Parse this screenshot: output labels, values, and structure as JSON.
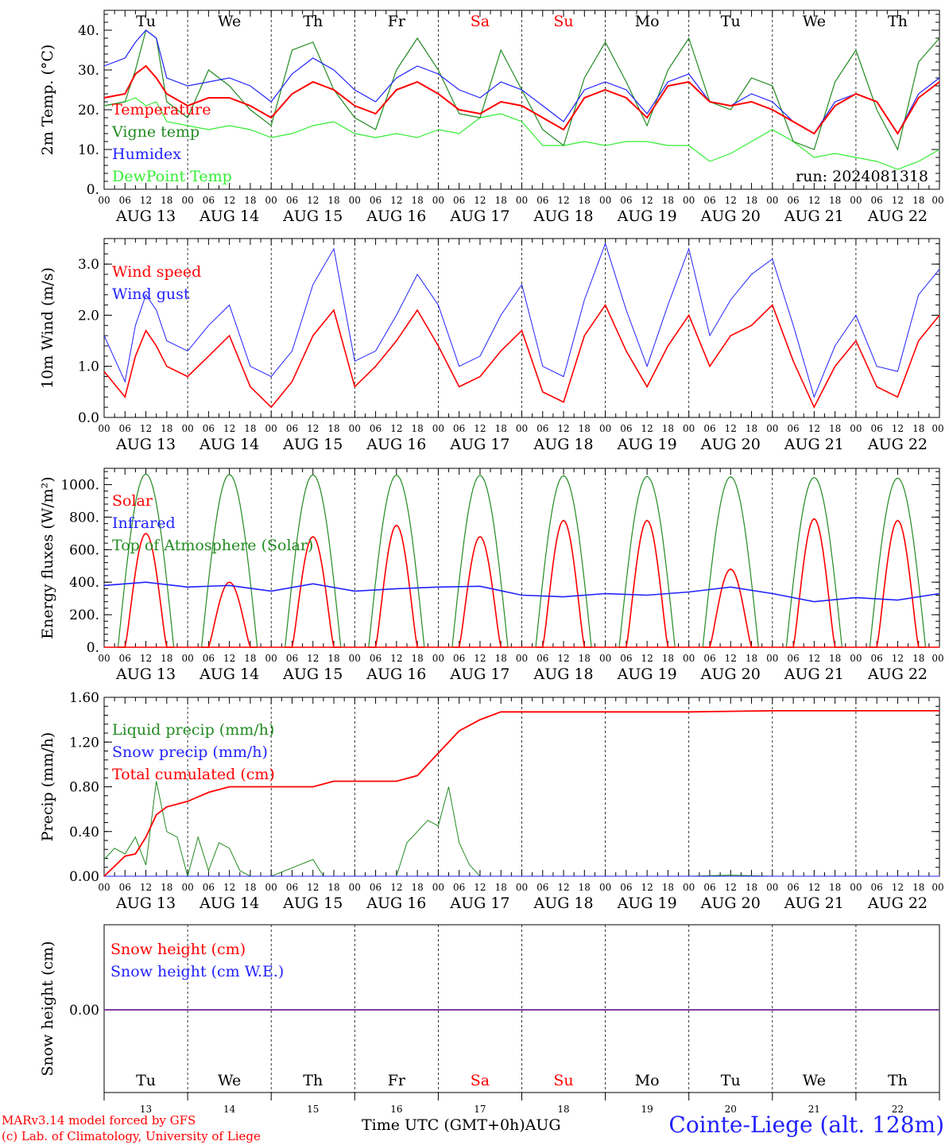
{
  "run_label": "run: 2024081318",
  "day_names": [
    "Tu",
    "We",
    "Th",
    "Fr",
    "Sa",
    "Su",
    "Mo",
    "Tu",
    "We",
    "Th"
  ],
  "weekend_indices": [
    4,
    5
  ],
  "date_labels": [
    "AUG 13",
    "AUG 14",
    "AUG 15",
    "AUG 16",
    "AUG 17",
    "AUG 18",
    "AUG 19",
    "AUG 20",
    "AUG 21",
    "AUG 22"
  ],
  "hour_labels": [
    "00",
    "06",
    "12",
    "18"
  ],
  "last_hour_label": "00",
  "bottom_day_numbers": [
    "13",
    "14",
    "15",
    "16",
    "17",
    "18",
    "19",
    "20",
    "21",
    "22"
  ],
  "colors": {
    "red": "#ff0000",
    "green": "#228b22",
    "blue": "#2222ff",
    "lightgreen": "#33ee33",
    "purple": "#7f3f9f"
  },
  "chart_data": [
    {
      "type": "line",
      "ylabel": "2m Temp. (°C)",
      "ylim": [
        0,
        45
      ],
      "yticks": [
        0,
        10,
        20,
        30,
        40
      ],
      "ytick_labels": [
        "0.",
        "10.",
        "20.",
        "30.",
        "40."
      ],
      "x_unit": "hours since AUG 13 00 UTC",
      "series": [
        {
          "name": "Temperature",
          "color": "red",
          "x": [
            0,
            6,
            9,
            12,
            15,
            18,
            24,
            30,
            36,
            42,
            48,
            54,
            60,
            66,
            72,
            78,
            84,
            90,
            96,
            102,
            108,
            114,
            120,
            126,
            132,
            138,
            144,
            150,
            156,
            162,
            168,
            174,
            180,
            186,
            192,
            198,
            204,
            210,
            216,
            222,
            228,
            234,
            240
          ],
          "y": [
            23,
            24,
            29,
            31,
            28,
            24,
            21,
            23,
            23,
            21,
            18,
            24,
            27,
            25,
            21,
            19,
            25,
            27,
            24,
            20,
            19,
            22,
            21,
            18,
            15,
            23,
            25,
            23,
            18,
            26,
            27,
            22,
            21,
            22,
            20,
            17,
            14,
            21,
            24,
            22,
            14,
            23,
            27
          ]
        },
        {
          "name": "Vigne temp",
          "color": "green",
          "x": [
            0,
            6,
            9,
            12,
            15,
            18,
            24,
            30,
            36,
            42,
            48,
            54,
            60,
            66,
            72,
            78,
            84,
            90,
            96,
            102,
            108,
            114,
            120,
            126,
            132,
            138,
            144,
            150,
            156,
            162,
            168,
            174,
            180,
            186,
            192,
            198,
            204,
            210,
            216,
            222,
            228,
            234,
            240
          ],
          "y": [
            21,
            22,
            30,
            40,
            38,
            22,
            18,
            30,
            26,
            20,
            16,
            35,
            37,
            25,
            18,
            15,
            30,
            38,
            30,
            19,
            18,
            35,
            25,
            15,
            11,
            28,
            37,
            27,
            16,
            30,
            38,
            22,
            20,
            28,
            26,
            12,
            10,
            27,
            35,
            20,
            10,
            32,
            38
          ]
        },
        {
          "name": "Humidex",
          "color": "blue",
          "x": [
            0,
            6,
            9,
            12,
            15,
            18,
            24,
            30,
            36,
            42,
            48,
            54,
            60,
            66,
            72,
            78,
            84,
            90,
            96,
            102,
            108,
            114,
            120,
            126,
            132,
            138,
            144,
            150,
            156,
            162,
            168,
            174,
            180,
            186,
            192,
            198,
            204,
            210,
            216,
            222,
            228,
            234,
            240
          ],
          "y": [
            31,
            33,
            37,
            40,
            38,
            28,
            26,
            27,
            28,
            26,
            22,
            29,
            33,
            30,
            25,
            22,
            28,
            31,
            29,
            25,
            23,
            27,
            25,
            21,
            17,
            25,
            27,
            25,
            19,
            27,
            29,
            22,
            21,
            24,
            22,
            17,
            14,
            22,
            24,
            22,
            14,
            24,
            28
          ]
        },
        {
          "name": "DewPoint Temp",
          "color": "lightgreen",
          "x": [
            0,
            6,
            9,
            12,
            15,
            18,
            24,
            30,
            36,
            42,
            48,
            54,
            60,
            66,
            72,
            78,
            84,
            90,
            96,
            102,
            108,
            114,
            120,
            126,
            132,
            138,
            144,
            150,
            156,
            162,
            168,
            174,
            180,
            186,
            192,
            198,
            204,
            210,
            216,
            222,
            228,
            234,
            240
          ],
          "y": [
            21,
            22,
            23,
            21,
            22,
            17,
            16,
            15,
            16,
            15,
            13,
            14,
            16,
            17,
            14,
            13,
            14,
            13,
            15,
            14,
            18,
            19,
            17,
            11,
            11,
            12,
            11,
            12,
            12,
            11,
            11,
            7,
            9,
            12,
            15,
            12,
            8,
            9,
            8,
            7,
            5,
            7,
            10
          ]
        }
      ]
    },
    {
      "type": "line",
      "ylabel": "10m Wind (m/s)",
      "ylim": [
        0,
        3.5
      ],
      "yticks": [
        0,
        1,
        2,
        3
      ],
      "ytick_labels": [
        "0.0",
        "1.0",
        "2.0",
        "3.0"
      ],
      "x_unit": "hours since AUG 13 00 UTC",
      "series": [
        {
          "name": "Wind speed",
          "color": "red",
          "x": [
            0,
            6,
            9,
            12,
            15,
            18,
            24,
            30,
            36,
            42,
            48,
            54,
            60,
            66,
            72,
            78,
            84,
            90,
            96,
            102,
            108,
            114,
            120,
            126,
            132,
            138,
            144,
            150,
            156,
            162,
            168,
            174,
            180,
            186,
            192,
            198,
            204,
            210,
            216,
            222,
            228,
            234,
            240
          ],
          "y": [
            0.9,
            0.4,
            1.2,
            1.7,
            1.4,
            1.0,
            0.8,
            1.2,
            1.6,
            0.6,
            0.2,
            0.7,
            1.6,
            2.1,
            0.6,
            1.0,
            1.5,
            2.1,
            1.4,
            0.6,
            0.8,
            1.3,
            1.7,
            0.5,
            0.3,
            1.6,
            2.2,
            1.3,
            0.6,
            1.4,
            2.0,
            1.0,
            1.6,
            1.8,
            2.2,
            1.1,
            0.2,
            1.0,
            1.5,
            0.6,
            0.4,
            1.5,
            2.0
          ]
        },
        {
          "name": "Wind gust",
          "color": "blue",
          "x": [
            0,
            6,
            9,
            12,
            15,
            18,
            24,
            30,
            36,
            42,
            48,
            54,
            60,
            66,
            72,
            78,
            84,
            90,
            96,
            102,
            108,
            114,
            120,
            126,
            132,
            138,
            144,
            150,
            156,
            162,
            168,
            174,
            180,
            186,
            192,
            198,
            204,
            210,
            216,
            222,
            228,
            234,
            240
          ],
          "y": [
            1.6,
            0.7,
            1.8,
            2.4,
            2.1,
            1.5,
            1.3,
            1.8,
            2.2,
            1.0,
            0.8,
            1.3,
            2.6,
            3.3,
            1.1,
            1.3,
            2.0,
            2.8,
            2.2,
            1.0,
            1.2,
            2.0,
            2.6,
            1.0,
            0.8,
            2.3,
            3.4,
            2.1,
            1.0,
            2.2,
            3.3,
            1.6,
            2.3,
            2.8,
            3.1,
            1.8,
            0.4,
            1.4,
            2.0,
            1.0,
            0.9,
            2.4,
            2.9
          ]
        }
      ]
    },
    {
      "type": "line",
      "ylabel": "Energy fluxes (W/m²)",
      "ylim": [
        0,
        1100
      ],
      "yticks": [
        0,
        200,
        400,
        600,
        800,
        1000
      ],
      "ytick_labels": [
        "0.",
        "200.",
        "400.",
        "600.",
        "800.",
        "1000."
      ],
      "x_unit": "hours since AUG 13 00 UTC",
      "toa_peaks": [
        1065,
        1062,
        1060,
        1058,
        1056,
        1054,
        1050,
        1048,
        1044,
        1040
      ],
      "solar_peaks": [
        700,
        400,
        680,
        750,
        680,
        780,
        780,
        480,
        790,
        780
      ],
      "series": [
        {
          "name": "Solar",
          "color": "red",
          "note": "daily cycle, peaks listed in solar_peaks (W/m2)"
        },
        {
          "name": "Infrared",
          "color": "blue",
          "x": [
            0,
            12,
            24,
            36,
            48,
            60,
            72,
            84,
            96,
            108,
            120,
            132,
            144,
            156,
            168,
            180,
            192,
            204,
            216,
            228,
            240
          ],
          "y": [
            380,
            400,
            370,
            380,
            345,
            390,
            345,
            360,
            370,
            375,
            320,
            310,
            330,
            320,
            340,
            370,
            330,
            280,
            305,
            290,
            330
          ]
        },
        {
          "name": "Top of Atmosphere (Solar)",
          "color": "green",
          "note": "daily cycle, peaks listed in toa_peaks (W/m2)"
        }
      ]
    },
    {
      "type": "line",
      "ylabel": "Precip (mm/h)",
      "ylim": [
        0,
        1.6
      ],
      "yticks": [
        0,
        0.4,
        0.8,
        1.2,
        1.6
      ],
      "ytick_labels": [
        "0.00",
        "0.40",
        "0.80",
        "1.20",
        "1.60"
      ],
      "x_unit": "hours since AUG 13 00 UTC",
      "series": [
        {
          "name": "Liquid precip (mm/h)",
          "color": "green",
          "x": [
            0,
            3,
            6,
            9,
            12,
            15,
            18,
            21,
            24,
            27,
            30,
            33,
            36,
            39,
            42,
            48,
            60,
            63,
            66,
            72,
            84,
            87,
            90,
            93,
            96,
            99,
            102,
            105,
            108,
            111,
            114,
            120,
            144,
            168,
            180,
            192,
            216,
            240
          ],
          "y": [
            0.15,
            0.25,
            0.2,
            0.35,
            0.1,
            0.85,
            0.4,
            0.35,
            0.0,
            0.35,
            0.05,
            0.3,
            0.25,
            0.05,
            0.0,
            0.0,
            0.15,
            0.0,
            0.0,
            0.0,
            0.0,
            0.3,
            0.4,
            0.5,
            0.45,
            0.8,
            0.3,
            0.1,
            0.0,
            0.0,
            0.0,
            0.0,
            0.0,
            0.0,
            0.01,
            0.0,
            0.0,
            0.0
          ]
        },
        {
          "name": "Snow precip (mm/h)",
          "color": "blue",
          "x": [
            0,
            240
          ],
          "y": [
            0,
            0
          ]
        },
        {
          "name": "Total cumulated (cm)",
          "color": "red",
          "x": [
            0,
            6,
            9,
            12,
            15,
            18,
            24,
            30,
            36,
            42,
            48,
            60,
            66,
            72,
            84,
            90,
            96,
            102,
            108,
            114,
            120,
            126,
            132,
            144,
            168,
            192,
            216,
            240
          ],
          "y": [
            0.0,
            0.18,
            0.2,
            0.35,
            0.55,
            0.62,
            0.67,
            0.75,
            0.8,
            0.8,
            0.8,
            0.8,
            0.85,
            0.85,
            0.85,
            0.9,
            1.1,
            1.3,
            1.4,
            1.47,
            1.47,
            1.47,
            1.47,
            1.47,
            1.47,
            1.48,
            1.48,
            1.48
          ]
        }
      ]
    },
    {
      "type": "line",
      "ylabel": "Snow height (cm)",
      "ytick_labels": [
        "0.00"
      ],
      "x_unit": "hours since AUG 13 00 UTC",
      "series": [
        {
          "name": "Snow height (cm)",
          "color": "red",
          "x": [
            0,
            240
          ],
          "y": [
            0,
            0
          ]
        },
        {
          "name": "Snow height (cm W.E.)",
          "color": "blue",
          "x": [
            0,
            240
          ],
          "y": [
            0,
            0
          ]
        }
      ]
    }
  ],
  "footer": {
    "credit1": "MARv3.14 model forced by GFS",
    "credit2": "(c) Lab. of Climatology, University of Liege",
    "axis_title": "Time UTC (GMT+0h)",
    "month": "AUG",
    "station": "Cointe-Liege (alt. 128m)"
  }
}
